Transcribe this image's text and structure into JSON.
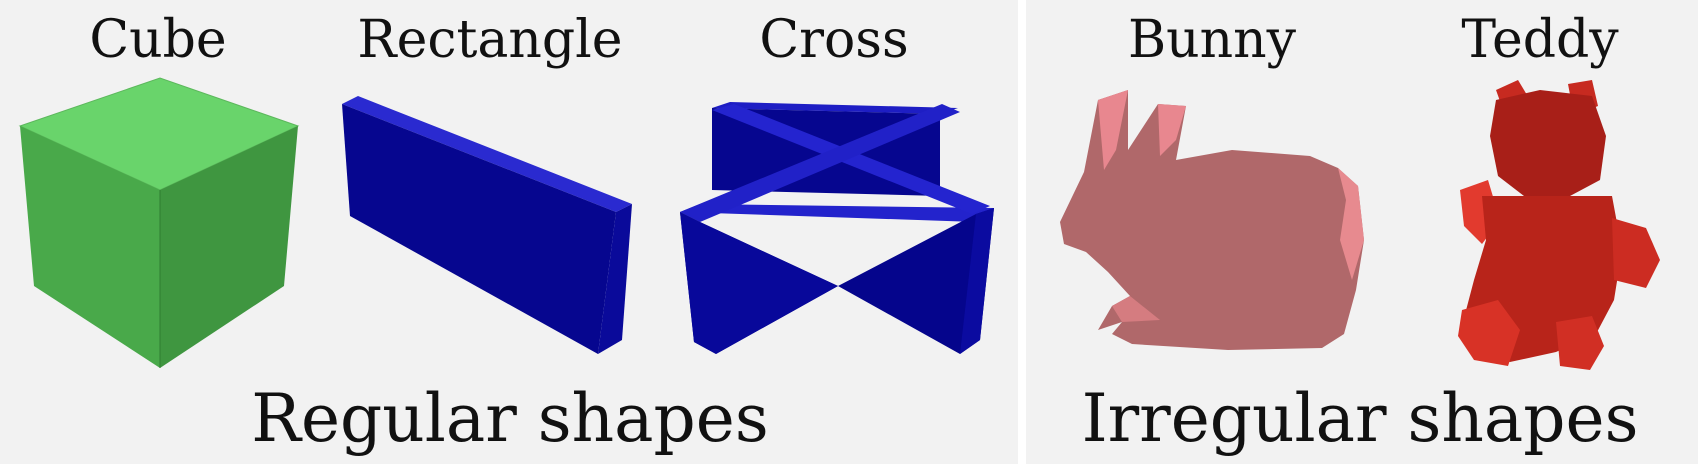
{
  "groups": [
    {
      "label": "Regular shapes",
      "shapes": [
        {
          "label": "Cube",
          "icon": "cube-icon",
          "color": "#4caf50"
        },
        {
          "label": "Rectangle",
          "icon": "rectangular-slab-icon",
          "color": "#0a0a9a"
        },
        {
          "label": "Cross",
          "icon": "cross-slab-icon",
          "color": "#0a0a9a"
        }
      ]
    },
    {
      "label": "Irregular shapes",
      "shapes": [
        {
          "label": "Bunny",
          "icon": "bunny-icon",
          "color": "#b5686a"
        },
        {
          "label": "Teddy",
          "icon": "teddy-bear-icon",
          "color": "#c0241c"
        }
      ]
    }
  ]
}
